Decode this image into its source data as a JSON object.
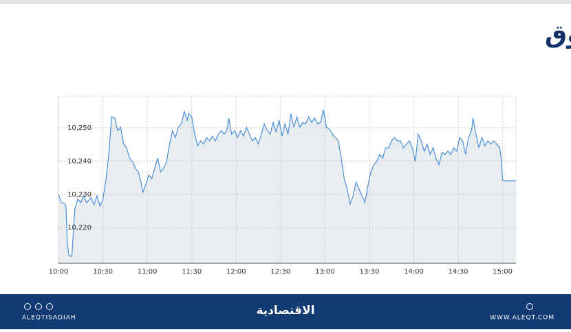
{
  "chart_data": {
    "type": "area",
    "title": "مؤشر السوق",
    "color": "#4a8fdc",
    "fill": "#e8edf0",
    "grid": true,
    "xlim": [
      "10:00",
      "15:09"
    ],
    "xticks": [
      "10:00",
      "10:30",
      "11:00",
      "11:30",
      "12:00",
      "12:30",
      "13:00",
      "13:30",
      "14:00",
      "14:30",
      "15:00"
    ],
    "ylim": [
      10209.3,
      10259.5
    ],
    "yticks": [
      {
        "value": 10220,
        "label": "10,220"
      },
      {
        "value": 10230,
        "label": "10,230"
      },
      {
        "value": 10240,
        "label": "10,240"
      },
      {
        "value": 10250,
        "label": "10,250"
      }
    ],
    "x": [
      "10:00",
      "10:02",
      "10:04",
      "10:05",
      "10:06",
      "10:07",
      "10:09",
      "10:10",
      "10:11",
      "10:13",
      "10:15",
      "10:17",
      "10:19",
      "10:22",
      "10:24",
      "10:26",
      "10:28",
      "10:30",
      "10:32",
      "10:34",
      "10:35",
      "10:36",
      "10:38",
      "10:40",
      "10:42",
      "10:44",
      "10:46",
      "10:48",
      "10:50",
      "10:52",
      "10:54",
      "10:56",
      "10:57",
      "10:59",
      "11:01",
      "11:03",
      "11:05",
      "11:07",
      "11:09",
      "11:11",
      "11:13",
      "11:15",
      "11:17",
      "11:19",
      "11:21",
      "11:23",
      "11:25",
      "11:27",
      "11:28",
      "11:30",
      "11:32",
      "11:34",
      "11:36",
      "11:38",
      "11:40",
      "11:42",
      "11:44",
      "11:46",
      "11:48",
      "11:50",
      "11:52",
      "11:54",
      "11:55",
      "11:57",
      "11:59",
      "12:01",
      "12:03",
      "12:05",
      "12:07",
      "12:09",
      "12:11",
      "12:13",
      "12:15",
      "12:17",
      "12:19",
      "12:21",
      "12:23",
      "12:25",
      "12:27",
      "12:29",
      "12:31",
      "12:33",
      "12:35",
      "12:37",
      "12:39",
      "12:41",
      "12:43",
      "12:45",
      "12:47",
      "12:49",
      "12:51",
      "12:53",
      "12:55",
      "12:57",
      "12:59",
      "13:01",
      "13:03",
      "13:05",
      "13:07",
      "13:09",
      "13:11",
      "13:13",
      "13:15",
      "13:17",
      "13:19",
      "13:21",
      "13:23",
      "13:25",
      "13:27",
      "13:29",
      "13:31",
      "13:33",
      "13:35",
      "13:37",
      "13:39",
      "13:41",
      "13:43",
      "13:45",
      "13:47",
      "13:49",
      "13:51",
      "13:53",
      "13:55",
      "13:57",
      "13:59",
      "14:01",
      "14:03",
      "14:05",
      "14:07",
      "14:09",
      "14:11",
      "14:13",
      "14:15",
      "14:17",
      "14:19",
      "14:21",
      "14:23",
      "14:25",
      "14:27",
      "14:29",
      "14:31",
      "14:33",
      "14:35",
      "14:37",
      "14:39",
      "14:40",
      "14:42",
      "14:44",
      "14:46",
      "14:48",
      "14:50",
      "14:52",
      "14:54",
      "14:56",
      "14:58",
      "14:59",
      "15:00",
      "15:01",
      "15:09"
    ],
    "values": [
      10230.0,
      10227.5,
      10227.3,
      10226.5,
      10215.2,
      10211.6,
      10211.4,
      10218.2,
      10225.5,
      10228.6,
      10227.5,
      10229.6,
      10227.5,
      10229.0,
      10226.9,
      10229.6,
      10226.5,
      10228.6,
      10234.3,
      10242.0,
      10248.1,
      10253.3,
      10252.9,
      10249.2,
      10250.2,
      10245.1,
      10244.0,
      10240.9,
      10239.9,
      10237.8,
      10236.8,
      10233.1,
      10230.6,
      10233.1,
      10235.8,
      10234.7,
      10237.8,
      10240.9,
      10236.8,
      10237.8,
      10239.9,
      10245.1,
      10249.2,
      10247.1,
      10250.2,
      10251.2,
      10254.9,
      10252.3,
      10254.3,
      10253.3,
      10248.1,
      10244.6,
      10246.1,
      10245.1,
      10247.1,
      10246.1,
      10247.5,
      10246.1,
      10248.1,
      10249.2,
      10248.1,
      10249.6,
      10252.9,
      10248.1,
      10249.2,
      10247.1,
      10249.2,
      10247.5,
      10250.2,
      10248.1,
      10246.1,
      10247.1,
      10245.1,
      10248.1,
      10251.2,
      10249.2,
      10248.1,
      10251.6,
      10248.8,
      10252.3,
      10247.5,
      10251.2,
      10248.1,
      10254.3,
      10250.2,
      10253.3,
      10250.2,
      10251.6,
      10251.2,
      10253.3,
      10251.6,
      10252.9,
      10251.2,
      10251.6,
      10255.4,
      10250.2,
      10249.6,
      10248.1,
      10247.1,
      10246.1,
      10240.9,
      10234.7,
      10231.6,
      10227.1,
      10229.6,
      10233.7,
      10231.6,
      10229.6,
      10227.5,
      10232.7,
      10236.8,
      10238.9,
      10239.9,
      10242.0,
      10240.9,
      10244.0,
      10244.0,
      10246.1,
      10247.1,
      10246.1,
      10246.1,
      10244.0,
      10245.1,
      10246.1,
      10244.0,
      10239.9,
      10248.1,
      10246.1,
      10243.0,
      10245.1,
      10242.0,
      10244.0,
      10240.9,
      10238.9,
      10242.6,
      10242.0,
      10243.0,
      10242.0,
      10244.0,
      10243.0,
      10247.1,
      10246.1,
      10242.0,
      10247.1,
      10249.2,
      10252.9,
      10248.1,
      10244.0,
      10247.1,
      10244.6,
      10246.1,
      10245.1,
      10246.1,
      10245.1,
      10244.0,
      10240.9,
      10234.3,
      10234.1,
      10234.1
    ]
  },
  "footer": {
    "handle": "ALEQTISADIAH",
    "brand": "الاقتصادية",
    "website": "WWW.ALEQT.COM"
  }
}
